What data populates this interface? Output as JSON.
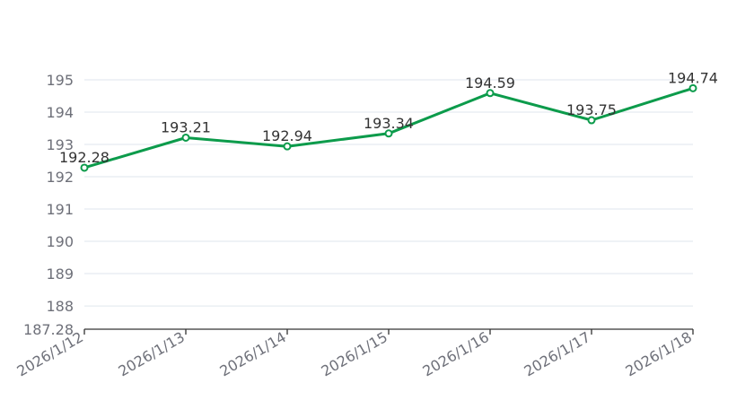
{
  "chart_data": {
    "type": "line",
    "title": "",
    "xlabel": "",
    "ylabel": "",
    "categories": [
      "2026/1/12",
      "2026/1/13",
      "2026/1/14",
      "2026/1/15",
      "2026/1/16",
      "2026/1/17",
      "2026/1/18"
    ],
    "series": [
      {
        "values": [
          192.28,
          193.21,
          192.94,
          193.34,
          194.59,
          193.75,
          194.74
        ],
        "data_labels": [
          "192.28",
          "193.21",
          "192.94",
          "193.34",
          "194.59",
          "193.75",
          "194.74"
        ],
        "color": "#0c9b4b"
      }
    ],
    "ylim": [
      187.28,
      195
    ],
    "y_ticks": [
      195,
      194,
      193,
      192,
      191,
      190,
      189,
      188
    ],
    "y_min_label": "187.28",
    "grid": true,
    "legend": "none"
  }
}
